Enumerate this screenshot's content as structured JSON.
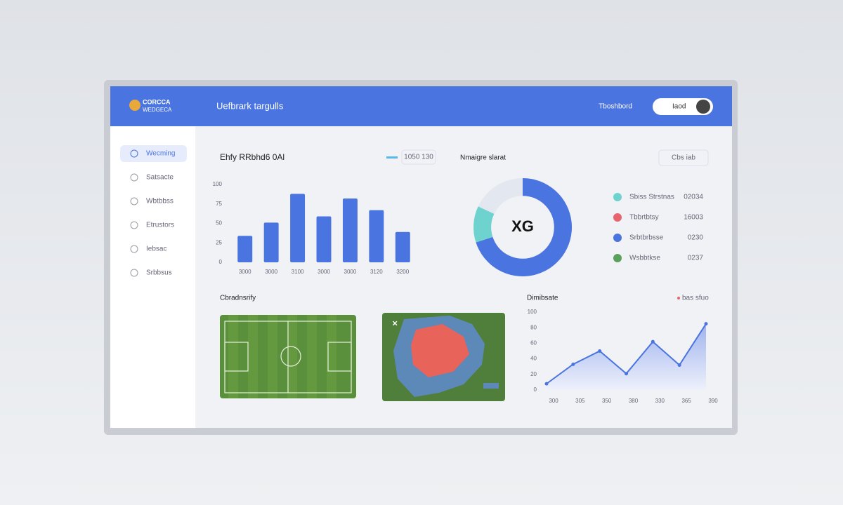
{
  "app": {
    "logo_line1": "CORCCA",
    "logo_line2": "WEDGECA",
    "header_title": "Uefbrark targulls",
    "nav_link": "Tboshbord",
    "user": "Iaod"
  },
  "sidebar": {
    "items": [
      "Wecming",
      "Satsacte",
      "Wbtbbss",
      "Etrustors",
      "Iebsac",
      "Srbbsus"
    ]
  },
  "bar_badge": "1050 130",
  "donut_action": "Cbs  iab",
  "donut_legend": [
    {
      "label": "Sbiss Strstnas",
      "value": "02034",
      "color": "#6ed3cf"
    },
    {
      "label": "Tbbrtbtsy",
      "value": "16003",
      "color": "#e8646c"
    },
    {
      "label": "Srbtbrbsse",
      "value": "0230",
      "color": "#4a74e0"
    },
    {
      "label": "Wsbbtkse",
      "value": "0237",
      "color": "#5aa05a"
    }
  ],
  "heatmap_title": "Cbradnsrify",
  "line_legend": "bas sfuo",
  "chart_data": [
    {
      "type": "bar",
      "title": "Ehfy RRbhd6 0Al",
      "categories": [
        "3000",
        "3000",
        "3100",
        "3000",
        "3000",
        "3120",
        "3200"
      ],
      "values": [
        34,
        51,
        88,
        59,
        82,
        67,
        39
      ],
      "color": "#4a74e0",
      "ylim": [
        0,
        100
      ],
      "yticks": [
        0,
        25,
        50,
        75,
        100
      ]
    },
    {
      "type": "pie",
      "title": "Nmaigre slarat",
      "center_label": "XG",
      "values": [
        70,
        12,
        18
      ],
      "colors": [
        "#4a74e0",
        "#6ed3cf",
        "#e3e7f0"
      ]
    },
    {
      "type": "line",
      "title": "Dimibsate",
      "categories": [
        "300",
        "305",
        "350",
        "380",
        "330",
        "365",
        "390"
      ],
      "values": [
        8,
        33,
        50,
        21,
        62,
        32,
        85
      ],
      "color": "#4a74e0",
      "ylim": [
        0,
        100
      ],
      "yticks": [
        0,
        20,
        40,
        60,
        80,
        100
      ]
    }
  ]
}
